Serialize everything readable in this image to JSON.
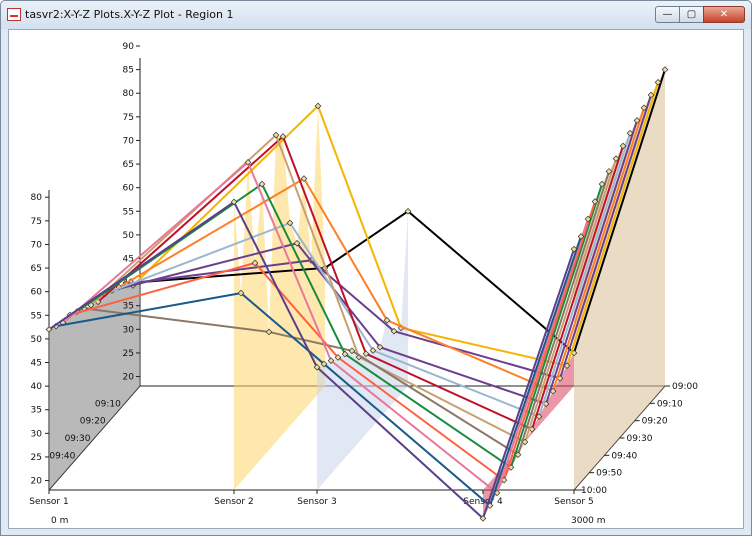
{
  "window": {
    "title": "tasvr2:X-Y-Z Plots.X-Y-Z Plot - Region 1",
    "minimize_icon": "minimize-icon",
    "restore_icon": "restore-icon",
    "close_icon": "close-icon"
  },
  "chart_data": {
    "type": "line",
    "title": "",
    "x_categories": [
      "Sensor 1",
      "Sensor 2",
      "Sensor 3",
      "Sensor 4",
      "Sensor 5"
    ],
    "x_range_labels": {
      "start": "0 m",
      "end": "3000 m"
    },
    "y_ticks": [
      20,
      25,
      30,
      35,
      40,
      45,
      50,
      55,
      60,
      65,
      70,
      75,
      80,
      85,
      90
    ],
    "y_range": [
      18,
      90
    ],
    "z_ticks": [
      "09:00",
      "09:10",
      "09:20",
      "09:30",
      "09:40",
      "09:50",
      "10:00"
    ],
    "series": [
      {
        "color": "#000000",
        "z": 0,
        "values": [
          40,
          43,
          55,
          25,
          85
        ]
      },
      {
        "color": "#f4b400",
        "z": 1,
        "values": [
          41,
          79,
          32,
          24,
          84
        ]
      },
      {
        "color": "#6b3f8e",
        "z": 2,
        "values": [
          43,
          48,
          33,
          23,
          83
        ]
      },
      {
        "color": "#ff7f24",
        "z": 3,
        "values": [
          44,
          67,
          37,
          22,
          82
        ]
      },
      {
        "color": "#6b3f8e",
        "z": 4,
        "values": [
          45,
          55,
          33,
          21,
          81
        ]
      },
      {
        "color": "#9bb6d0",
        "z": 5,
        "values": [
          46,
          61,
          34,
          20,
          80
        ]
      },
      {
        "color": "#c0102a",
        "z": 6,
        "values": [
          46,
          81,
          35,
          19,
          79
        ]
      },
      {
        "color": "#c8a070",
        "z": 7,
        "values": [
          47,
          83,
          36,
          18,
          78
        ]
      },
      {
        "color": "#8b7765",
        "z": 8,
        "values": [
          48,
          43,
          39,
          17,
          77
        ]
      },
      {
        "color": "#1a8a3c",
        "z": 9,
        "values": [
          49,
          76,
          40,
          16,
          76
        ]
      },
      {
        "color": "#ff6040",
        "z": 10,
        "values": [
          50,
          61,
          41,
          15,
          74
        ]
      },
      {
        "color": "#e8789b",
        "z": 11,
        "values": [
          50,
          84,
          42,
          14,
          72
        ]
      },
      {
        "color": "#1a5a8a",
        "z": 12,
        "values": [
          51,
          58,
          43,
          13,
          70
        ]
      },
      {
        "color": "#5a3f8a",
        "z": 13,
        "values": [
          52,
          79,
          44,
          12,
          69
        ]
      }
    ],
    "fills": [
      {
        "sensor": "Sensor 1",
        "color": "#808080"
      },
      {
        "sensor": "Sensor 2",
        "color": "#ffd56a"
      },
      {
        "sensor": "Sensor 3",
        "color": "#c9d4ea"
      },
      {
        "sensor": "Sensor 4",
        "color": "#d9425f"
      },
      {
        "sensor": "Sensor 5",
        "color": "#d8bf94"
      }
    ]
  }
}
